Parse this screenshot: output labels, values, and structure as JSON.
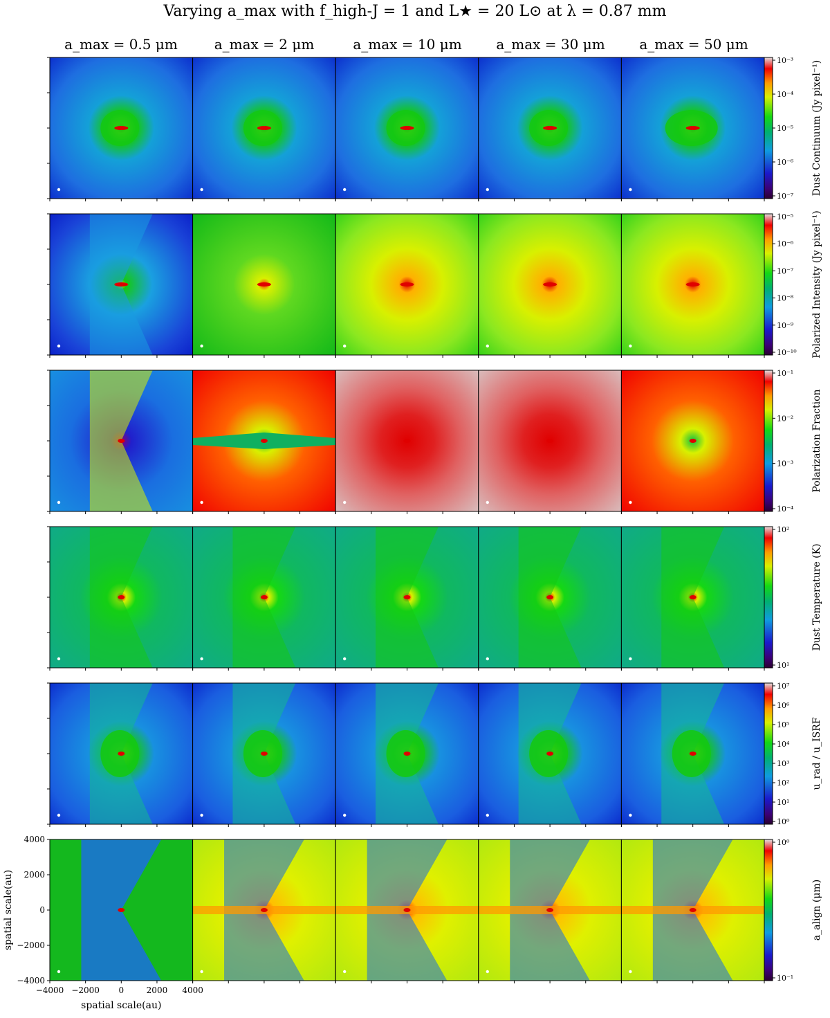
{
  "figure": {
    "title": "Varying a_max with f_high-J = 1 and L★ = 20 L⊙ at λ = 0.87 mm",
    "columns": [
      "a_max = 0.5 μm",
      "a_max = 2 μm",
      "a_max = 10 μm",
      "a_max = 30 μm",
      "a_max = 50 μm"
    ],
    "xlabel": "spatial scale(au)",
    "ylabel": "spatial scale(au)",
    "axis_ticks": [
      "−4000",
      "−2000",
      "0",
      "2000",
      "4000"
    ],
    "colorbar_labels": [
      "Dust Continuum (Jy pixel⁻¹)",
      "Polarized Intensity (Jy pixel⁻¹)",
      "Polarization Fraction",
      "Dust Temperature (K)",
      "u_rad / u_ISRF",
      "a_align (μm)"
    ]
  },
  "chart_data": {
    "type": "heatmap",
    "title": "Varying a_max with f_high-J = 1 and L★ = 20 L⊙ at λ = 0.87 mm",
    "xlabel": "spatial scale(au)",
    "ylabel": "spatial scale(au)",
    "xlim": [
      -4000,
      4000
    ],
    "ylim": [
      -4000,
      4000
    ],
    "xticks": [
      -4000,
      -2000,
      0,
      2000,
      4000
    ],
    "yticks": [
      -4000,
      -2000,
      0,
      2000,
      4000
    ],
    "columns": [
      0.5,
      2,
      10,
      30,
      50
    ],
    "column_unit": "μm",
    "rows": [
      {
        "quantity": "Dust Continuum",
        "unit": "Jy pixel⁻¹",
        "scale": "log",
        "range": [
          1e-07,
          0.001
        ],
        "ticks": [
          "10⁻³",
          "10⁻⁴",
          "10⁻⁵",
          "10⁻⁶",
          "10⁻⁷"
        ]
      },
      {
        "quantity": "Polarized Intensity",
        "unit": "Jy pixel⁻¹",
        "scale": "log",
        "range": [
          1e-10,
          1e-05
        ],
        "ticks": [
          "10⁻⁵",
          "10⁻⁶",
          "10⁻⁷",
          "10⁻⁸",
          "10⁻⁹",
          "10⁻¹⁰"
        ]
      },
      {
        "quantity": "Polarization Fraction",
        "unit": "",
        "scale": "log",
        "range": [
          0.0001,
          0.1
        ],
        "ticks": [
          "10⁻¹",
          "10⁻²",
          "10⁻³",
          "10⁻⁴"
        ]
      },
      {
        "quantity": "Dust Temperature",
        "unit": "K",
        "scale": "log",
        "range": [
          4,
          180
        ],
        "ticks": [
          "10²",
          "10¹"
        ]
      },
      {
        "quantity": "u_rad / u_ISRF",
        "unit": "",
        "scale": "log",
        "range": [
          1,
          10000000.0
        ],
        "ticks": [
          "10⁷",
          "10⁶",
          "10⁵",
          "10⁴",
          "10³",
          "10²",
          "10¹",
          "10⁰"
        ]
      },
      {
        "quantity": "a_align",
        "unit": "μm",
        "scale": "log",
        "range": [
          0.04,
          6
        ],
        "ticks": [
          "10⁰",
          "10⁻¹"
        ]
      }
    ]
  }
}
